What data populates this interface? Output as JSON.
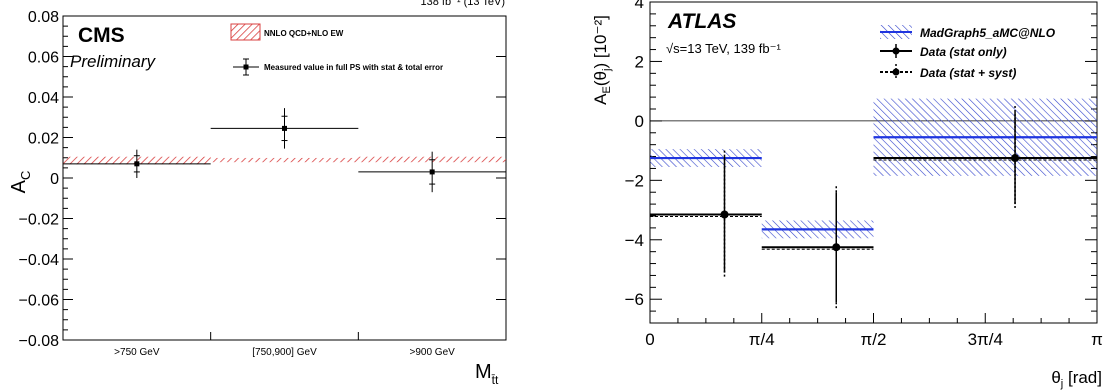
{
  "chart_data": [
    {
      "type": "scatter",
      "top_label": "138 fb⁻¹ (13 TeV)",
      "experiment": "CMS",
      "status": "Preliminary",
      "xlabel": "M",
      "xlabel_sub": "t̄t",
      "ylabel": "A",
      "ylabel_sub": "C",
      "ylim": [
        -0.08,
        0.08
      ],
      "yticks": [
        "0.08",
        "0.06",
        "0.04",
        "0.02",
        "0",
        "−0.02",
        "−0.04",
        "−0.06",
        "−0.08"
      ],
      "ytick_values": [
        0.08,
        0.06,
        0.04,
        0.02,
        0,
        -0.02,
        -0.04,
        -0.06,
        -0.08
      ],
      "categories": [
        ">750 GeV",
        "[750,900] GeV",
        ">900 GeV"
      ],
      "legend": {
        "theory": "NNLO QCD+NLO EW",
        "measured": "Measured value in full PS with stat & total error"
      },
      "theory": [
        {
          "center": 0.0085,
          "lo": 0.0068,
          "hi": 0.0105
        },
        {
          "center": 0.0088,
          "lo": 0.0078,
          "hi": 0.0099
        },
        {
          "center": 0.009,
          "lo": 0.0078,
          "hi": 0.0105
        }
      ],
      "measured": [
        {
          "value": 0.007,
          "stat": 0.004,
          "total": 0.007
        },
        {
          "value": 0.0245,
          "stat": 0.006,
          "total": 0.01
        },
        {
          "value": 0.003,
          "stat": 0.006,
          "total": 0.01
        }
      ]
    },
    {
      "type": "scatter",
      "experiment": "ATLAS",
      "energy_label": "√s=13 TeV, 139 fb⁻¹",
      "xlabel": "θ",
      "xlabel_sub": "j",
      "xlabel_unit": " [rad]",
      "ylabel": "A",
      "ylabel_sub": "E",
      "ylabel_rest": "(θ",
      "ylabel_rest_sub": "j",
      "ylabel_unit": ") [10⁻²]",
      "xlim": [
        0,
        3.14159
      ],
      "ylim": [
        -6.8,
        4
      ],
      "xticks": [
        "0",
        "π/4",
        "π/2",
        "3π/4",
        "π"
      ],
      "xtick_values": [
        0,
        0.7854,
        1.5708,
        2.3562,
        3.14159
      ],
      "yticks": [
        "4",
        "2",
        "0",
        "−2",
        "−4",
        "−6"
      ],
      "ytick_values": [
        4,
        2,
        0,
        -2,
        -4,
        -6
      ],
      "legend": {
        "mc": "MadGraph5_aMC@NLO",
        "data_stat": "Data (stat only)",
        "data_syst": "Data (stat + syst)"
      },
      "bins": [
        {
          "x0": 0,
          "x1": 0.7854
        },
        {
          "x0": 0.7854,
          "x1": 1.5708
        },
        {
          "x0": 1.5708,
          "x1": 3.14159
        }
      ],
      "mc": [
        {
          "value": -1.25,
          "lo": -1.55,
          "hi": -0.95
        },
        {
          "value": -3.65,
          "lo": -3.95,
          "hi": -3.35
        },
        {
          "value": -0.55,
          "lo": -1.85,
          "hi": 0.75
        }
      ],
      "data": [
        {
          "x": 0.5236,
          "value": -3.15,
          "stat": 1.95,
          "syst": 2.15
        },
        {
          "x": 1.309,
          "value": -4.25,
          "stat": 1.85,
          "syst": 2.05
        },
        {
          "x": 2.5656,
          "value": -1.25,
          "stat": 1.55,
          "syst": 1.75
        }
      ]
    }
  ]
}
